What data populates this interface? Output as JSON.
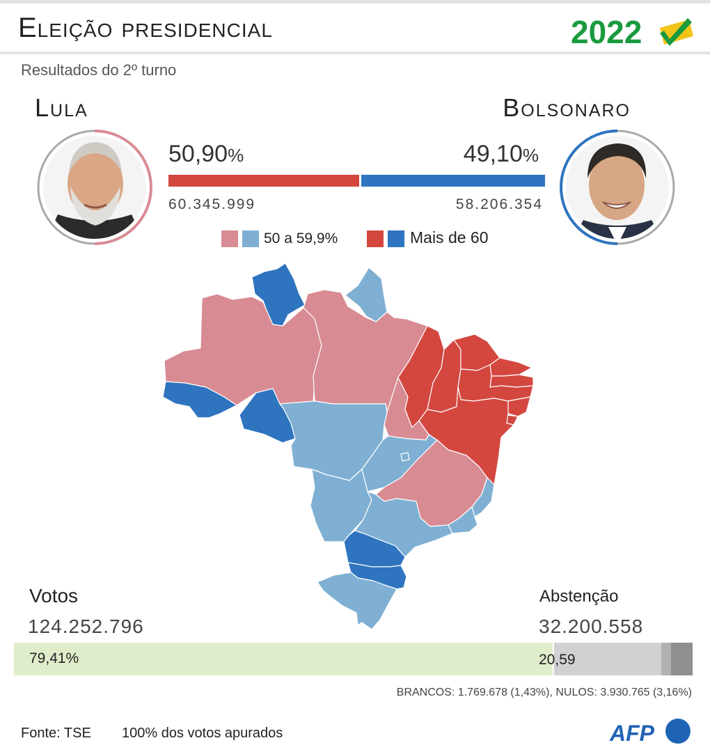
{
  "header": {
    "title": "Eleição presidencial",
    "year": "2022",
    "subtitle": "Resultados do 2º turno"
  },
  "candidates": [
    {
      "name": "Lula",
      "percent": "50,90",
      "votes": "60.345.999",
      "color": "#d3473f"
    },
    {
      "name": "Bolsonaro",
      "percent": "49,10",
      "votes": "58.206.354",
      "color": "#2e74bf"
    }
  ],
  "percent_unit": "%",
  "legend": {
    "light_label": "50 a 59,9%",
    "dark_label": "Mais de 60",
    "colors": {
      "lula_light": "#d88b93",
      "bolsonaro_light": "#7fb0d3",
      "lula_dark": "#d3473f",
      "bolsonaro_dark": "#2e74bf"
    }
  },
  "turnout": {
    "votes_label": "Votos",
    "votes_value": "124.252.796",
    "votes_percent": "79,41%",
    "abstention_label": "Abstenção",
    "abstention_value": "32.200.558",
    "abstention_percent": "20,59",
    "note": "BRANCOS: 1.769.678 (1,43%), NULOS: 3.930.765 (3,16%)",
    "colors": {
      "votes": "#e0edcb",
      "abstention": "#d0d1d3",
      "brancos": "#b0b1b3",
      "nulos": "#8e8f91"
    }
  },
  "footer": {
    "source": "Fonte: TSE",
    "status": "100% dos votos apurados",
    "logo": "AFP"
  },
  "chart_data": [
    {
      "type": "bar",
      "orientation": "horizontal-stacked",
      "categories": [
        "Lula",
        "Bolsonaro"
      ],
      "values": [
        50.9,
        49.1
      ],
      "votes": [
        60345999,
        58206354
      ],
      "unit": "%"
    },
    {
      "type": "bar",
      "orientation": "horizontal-stacked",
      "categories": [
        "Votos",
        "Abstenção"
      ],
      "values": [
        79.41,
        20.59
      ],
      "counts": [
        124252796,
        32200558
      ],
      "sub_breakdown": {
        "brancos_votes": 1769678,
        "brancos_percent": 1.43,
        "nulos_votes": 3930765,
        "nulos_percent": 3.16
      }
    },
    {
      "type": "choropleth",
      "region": "Brasil",
      "states": [
        {
          "uf": "AC",
          "winner": "Bolsonaro",
          "band": "Mais de 60"
        },
        {
          "uf": "RO",
          "winner": "Bolsonaro",
          "band": "Mais de 60"
        },
        {
          "uf": "RR",
          "winner": "Bolsonaro",
          "band": "Mais de 60"
        },
        {
          "uf": "AM",
          "winner": "Lula",
          "band": "50 a 59,9%"
        },
        {
          "uf": "PA",
          "winner": "Lula",
          "band": "50 a 59,9%"
        },
        {
          "uf": "AP",
          "winner": "Bolsonaro",
          "band": "50 a 59,9%"
        },
        {
          "uf": "TO",
          "winner": "Lula",
          "band": "50 a 59,9%"
        },
        {
          "uf": "MA",
          "winner": "Lula",
          "band": "Mais de 60"
        },
        {
          "uf": "PI",
          "winner": "Lula",
          "band": "Mais de 60"
        },
        {
          "uf": "CE",
          "winner": "Lula",
          "band": "Mais de 60"
        },
        {
          "uf": "RN",
          "winner": "Lula",
          "band": "Mais de 60"
        },
        {
          "uf": "PB",
          "winner": "Lula",
          "band": "Mais de 60"
        },
        {
          "uf": "PE",
          "winner": "Lula",
          "band": "Mais de 60"
        },
        {
          "uf": "AL",
          "winner": "Lula",
          "band": "Mais de 60"
        },
        {
          "uf": "SE",
          "winner": "Lula",
          "band": "Mais de 60"
        },
        {
          "uf": "BA",
          "winner": "Lula",
          "band": "Mais de 60"
        },
        {
          "uf": "MT",
          "winner": "Bolsonaro",
          "band": "50 a 59,9%"
        },
        {
          "uf": "GO",
          "winner": "Bolsonaro",
          "band": "50 a 59,9%"
        },
        {
          "uf": "DF",
          "winner": "Bolsonaro",
          "band": "50 a 59,9%"
        },
        {
          "uf": "MS",
          "winner": "Bolsonaro",
          "band": "50 a 59,9%"
        },
        {
          "uf": "MG",
          "winner": "Lula",
          "band": "50 a 59,9%"
        },
        {
          "uf": "ES",
          "winner": "Bolsonaro",
          "band": "50 a 59,9%"
        },
        {
          "uf": "RJ",
          "winner": "Bolsonaro",
          "band": "50 a 59,9%"
        },
        {
          "uf": "SP",
          "winner": "Bolsonaro",
          "band": "50 a 59,9%"
        },
        {
          "uf": "PR",
          "winner": "Bolsonaro",
          "band": "Mais de 60"
        },
        {
          "uf": "SC",
          "winner": "Bolsonaro",
          "band": "Mais de 60"
        },
        {
          "uf": "RS",
          "winner": "Bolsonaro",
          "band": "50 a 59,9%"
        }
      ]
    }
  ]
}
